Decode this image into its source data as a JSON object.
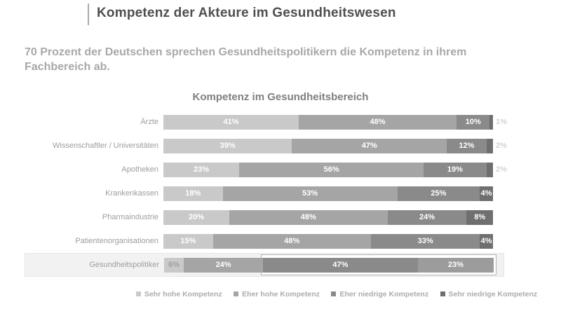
{
  "page": {
    "background": "#ffffff"
  },
  "header": {
    "title": "Kompetenz der Akteure im Gesundheitswesen",
    "subtitle": "70 Prozent der Deutschen sprechen Gesundheitspolitikern die Kompetenz in ihrem Fachbereich ab."
  },
  "chart_data": {
    "type": "bar",
    "stacked": true,
    "orientation": "horizontal",
    "title": "Kompetenz im Gesundheitsbereich",
    "unit": "%",
    "xlim": [
      0,
      100
    ],
    "grid": false,
    "legend_position": "bottom",
    "categories": [
      "Ärzte",
      "Wissenschaftler / Universitäten",
      "Apotheken",
      "Krankenkassen",
      "Pharmaindustrie",
      "Patientenorganisationen",
      "Gesundheitspolitiker"
    ],
    "series": [
      {
        "name": "Sehr hohe Kompetenz",
        "color": "#c9c9c9",
        "values": [
          41,
          39,
          23,
          18,
          20,
          15,
          6
        ]
      },
      {
        "name": "Eher hohe Kompetenz",
        "color": "#a5a5a5",
        "values": [
          48,
          47,
          56,
          53,
          48,
          48,
          24
        ]
      },
      {
        "name": "Eher niedrige Kompetenz",
        "color": "#8a8a8a",
        "values": [
          10,
          12,
          19,
          25,
          24,
          33,
          47
        ]
      },
      {
        "name": "Sehr niedrige Kompetenz",
        "color": "#6f6f6f",
        "values": [
          1,
          2,
          2,
          4,
          8,
          4,
          23
        ]
      }
    ],
    "legend": [
      "Sehr hohe Kompetenz",
      "Eher hohe Kompetenz",
      "Eher niedrige Kompetenz",
      "Sehr niedrige Kompetenz"
    ],
    "value_labels": "inside segments, white bold, suffixed with %",
    "outside_value_labels": {
      "series": "Sehr niedrige Kompetenz",
      "rows": [
        "Ärzte",
        "Wissenschaftler / Universitäten",
        "Apotheken"
      ],
      "color": "#d2d2d2"
    },
    "highlight": {
      "category": "Gesundheitspolitiker",
      "row_background": "#f2f2f2",
      "row_border": "#e6e6e6",
      "boxed_series": [
        "Eher niedrige Kompetenz",
        "Sehr niedrige Kompetenz"
      ],
      "box_border": "#b3b3b3",
      "boxed_fill_override": "#9c9c9c",
      "seg1_label_color": "#9e9e9e"
    },
    "colors": {
      "page_title": "#4f4f4f",
      "subtitle": "#a8a8a8",
      "chart_title": "#7f7f7f",
      "category_labels": "#9d9d9d",
      "legend_text": "#acacac"
    }
  }
}
